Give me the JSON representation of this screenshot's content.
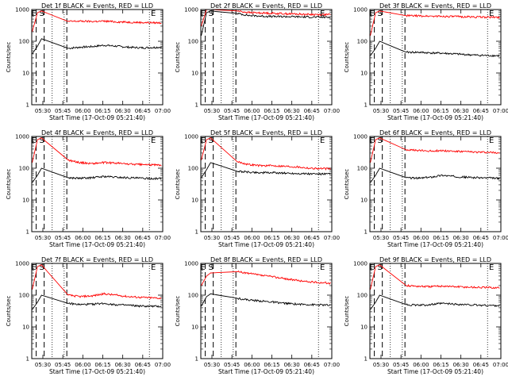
{
  "chart_data": [
    {
      "type": "line",
      "title": "Det 1f BLACK = Events, RED = LLD",
      "xlabel": "Start Time (17-Oct-09 05:21:40)",
      "ylabel": "Counts/sec",
      "markers": [
        {
          "label": "E",
          "x": "05:25"
        },
        {
          "label": "S",
          "x": "05:31"
        }
      ],
      "start_x": "05:21:40",
      "series": [
        {
          "name": "Events",
          "color": "#000000",
          "values": [
            40,
            70,
            120,
            60,
            65,
            68,
            75,
            70,
            65,
            62,
            65
          ]
        },
        {
          "name": "LLD",
          "color": "#ff0000",
          "values": [
            200,
            800,
            900,
            420,
            430,
            420,
            430,
            410,
            400,
            390,
            380
          ]
        }
      ]
    },
    {
      "type": "line",
      "title": "Det 2f BLACK = Events, RED = LLD",
      "xlabel": "Start Time (17-Oct-09 05:21:40)",
      "ylabel": "Counts/sec",
      "markers": [
        {
          "label": "E",
          "x": "05:25"
        },
        {
          "label": "S",
          "x": "05:31"
        }
      ],
      "start_x": "05:21:40",
      "series": [
        {
          "name": "Events",
          "color": "#000000",
          "values": [
            150,
            800,
            900,
            750,
            650,
            620,
            600,
            600,
            590,
            580,
            570
          ]
        },
        {
          "name": "LLD",
          "color": "#ff0000",
          "values": [
            300,
            1000,
            1000,
            900,
            800,
            780,
            760,
            740,
            720,
            700,
            690
          ]
        }
      ]
    },
    {
      "type": "line",
      "title": "Det 3f BLACK = Events, RED = LLD",
      "xlabel": "Start Time (17-Oct-09 05:21:40)",
      "ylabel": "Counts/sec",
      "markers": [
        {
          "label": "E",
          "x": "05:25"
        },
        {
          "label": "S",
          "x": "05:31"
        }
      ],
      "start_x": "05:21:40",
      "series": [
        {
          "name": "Events",
          "color": "#000000",
          "values": [
            35,
            60,
            100,
            45,
            45,
            43,
            42,
            40,
            38,
            36,
            35
          ]
        },
        {
          "name": "LLD",
          "color": "#ff0000",
          "values": [
            150,
            800,
            900,
            640,
            630,
            620,
            610,
            600,
            590,
            580,
            570
          ]
        }
      ]
    },
    {
      "type": "line",
      "title": "Det 4f BLACK = Events, RED = LLD",
      "xlabel": "Start Time (17-Oct-09 05:21:40)",
      "ylabel": "Counts/sec",
      "markers": [
        {
          "label": "E",
          "x": "05:25"
        },
        {
          "label": "S",
          "x": "05:31"
        }
      ],
      "start_x": "05:21:40",
      "series": [
        {
          "name": "Events",
          "color": "#000000",
          "values": [
            35,
            60,
            100,
            50,
            48,
            50,
            55,
            52,
            50,
            48,
            47
          ]
        },
        {
          "name": "LLD",
          "color": "#ff0000",
          "values": [
            150,
            800,
            900,
            180,
            150,
            140,
            150,
            145,
            135,
            130,
            125
          ]
        }
      ]
    },
    {
      "type": "line",
      "title": "Det 5f BLACK = Events, RED = LLD",
      "xlabel": "Start Time (17-Oct-09 05:21:40)",
      "ylabel": "Counts/sec",
      "markers": [
        {
          "label": "E",
          "x": "05:25"
        },
        {
          "label": "S",
          "x": "05:31"
        }
      ],
      "start_x": "05:21:40",
      "series": [
        {
          "name": "Events",
          "color": "#000000",
          "values": [
            50,
            90,
            150,
            80,
            75,
            72,
            72,
            70,
            68,
            66,
            65
          ]
        },
        {
          "name": "LLD",
          "color": "#ff0000",
          "values": [
            180,
            800,
            900,
            160,
            130,
            120,
            120,
            115,
            110,
            100,
            95
          ]
        }
      ]
    },
    {
      "type": "line",
      "title": "Det 6f BLACK = Events, RED = LLD",
      "xlabel": "Start Time (17-Oct-09 05:21:40)",
      "ylabel": "Counts/sec",
      "markers": [
        {
          "label": "E",
          "x": "05:25"
        },
        {
          "label": "S",
          "x": "05:31"
        }
      ],
      "start_x": "05:21:40",
      "series": [
        {
          "name": "Events",
          "color": "#000000",
          "values": [
            35,
            60,
            100,
            50,
            48,
            52,
            60,
            55,
            52,
            50,
            48
          ]
        },
        {
          "name": "LLD",
          "color": "#ff0000",
          "values": [
            150,
            800,
            900,
            380,
            360,
            350,
            360,
            340,
            330,
            320,
            310
          ]
        }
      ]
    },
    {
      "type": "line",
      "title": "Det 7f BLACK = Events, RED = LLD",
      "xlabel": "Start Time (17-Oct-09 05:21:40)",
      "ylabel": "Counts/sec",
      "markers": [
        {
          "label": "E",
          "x": "05:25"
        },
        {
          "label": "S",
          "x": "05:31"
        }
      ],
      "start_x": "05:21:40",
      "series": [
        {
          "name": "Events",
          "color": "#000000",
          "values": [
            35,
            60,
            100,
            55,
            50,
            52,
            55,
            50,
            48,
            45,
            44
          ]
        },
        {
          "name": "LLD",
          "color": "#ff0000",
          "values": [
            150,
            800,
            900,
            100,
            90,
            95,
            110,
            100,
            90,
            85,
            80
          ]
        }
      ]
    },
    {
      "type": "line",
      "title": "Det 8f BLACK = Events, RED = LLD",
      "xlabel": "Start Time (17-Oct-09 05:21:40)",
      "ylabel": "Counts/sec",
      "markers": [
        {
          "label": "E",
          "x": "05:25"
        },
        {
          "label": "S",
          "x": "05:31"
        }
      ],
      "start_x": "05:21:40",
      "series": [
        {
          "name": "Events",
          "color": "#000000",
          "values": [
            45,
            90,
            110,
            80,
            70,
            65,
            60,
            55,
            52,
            50,
            48
          ]
        },
        {
          "name": "LLD",
          "color": "#ff0000",
          "values": [
            200,
            400,
            500,
            550,
            480,
            420,
            380,
            330,
            290,
            260,
            240
          ]
        }
      ]
    },
    {
      "type": "line",
      "title": "Det 9f BLACK = Events, RED = LLD",
      "xlabel": "Start Time (17-Oct-09 05:21:40)",
      "ylabel": "Counts/sec",
      "markers": [
        {
          "label": "E",
          "x": "05:25"
        },
        {
          "label": "S",
          "x": "05:31"
        }
      ],
      "start_x": "05:21:40",
      "series": [
        {
          "name": "Events",
          "color": "#000000",
          "values": [
            35,
            60,
            100,
            50,
            48,
            50,
            55,
            52,
            50,
            48,
            47
          ]
        },
        {
          "name": "LLD",
          "color": "#ff0000",
          "values": [
            150,
            800,
            900,
            200,
            190,
            185,
            195,
            185,
            180,
            175,
            170
          ]
        }
      ]
    }
  ],
  "shared": {
    "x_ticks": [
      "05:30",
      "05:45",
      "06:00",
      "06:15",
      "06:30",
      "06:45",
      "07:00"
    ],
    "y_ticks": [
      "1",
      "10",
      "100",
      "1000"
    ],
    "ylim": [
      1,
      1000
    ],
    "y_scale": "log",
    "xlim": [
      "05:21:40",
      "07:00"
    ],
    "dotted_lines": [
      "05:37",
      "05:46",
      "06:50"
    ],
    "dashed_lines": [
      "05:25",
      "05:31",
      "05:48"
    ],
    "grid": false
  }
}
